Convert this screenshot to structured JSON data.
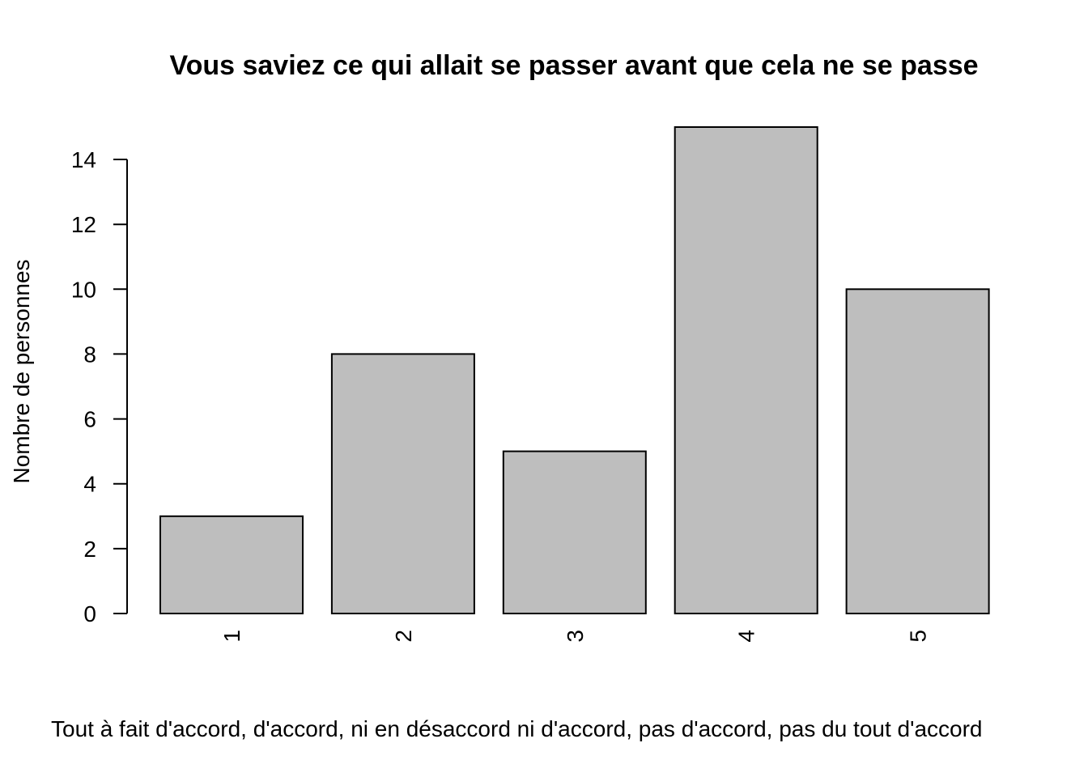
{
  "chart_data": {
    "type": "bar",
    "title": "Vous saviez ce qui allait se passer avant que cela ne se passe",
    "xlabel": "Tout à fait d'accord, d'accord, ni en désaccord ni d'accord, pas d'accord, pas du tout d'accord",
    "ylabel": "Nombre de personnes",
    "categories": [
      "1",
      "2",
      "3",
      "4",
      "5"
    ],
    "values": [
      3,
      8,
      5,
      15,
      10
    ],
    "ylim": [
      0,
      15
    ],
    "yticks": [
      "0",
      "2",
      "4",
      "6",
      "8",
      "10",
      "12",
      "14"
    ],
    "bar_color": "#bebebe",
    "grid": false,
    "legend": "none"
  }
}
